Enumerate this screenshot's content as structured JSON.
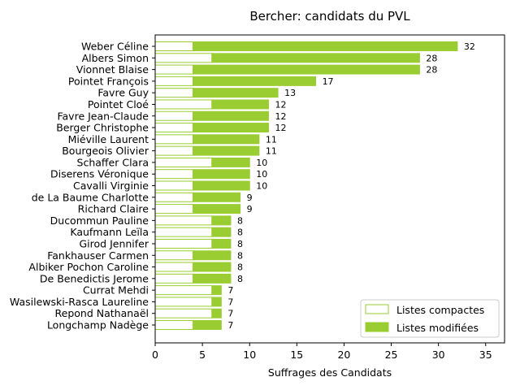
{
  "chart_data": {
    "type": "bar",
    "orientation": "horizontal",
    "stacked": true,
    "title": "Bercher: candidats du PVL",
    "xlabel": "Suffrages des Candidats",
    "ylabel": "",
    "xlim": [
      0,
      37
    ],
    "xticks": [
      0,
      5,
      10,
      15,
      20,
      25,
      30,
      35
    ],
    "grid": false,
    "legend_position": "lower-right",
    "categories": [
      "Weber Céline",
      "Albers Simon",
      "Vionnet Blaise",
      "Pointet François",
      "Favre Guy",
      "Pointet Cloé",
      "Favre Jean-Claude",
      "Berger Christophe",
      "Miéville Laurent",
      "Bourgeois Olivier",
      "Schaffer Clara",
      "Diserens Véronique",
      "Cavalli Virginie",
      "de La Baume Charlotte",
      "Richard Claire",
      "Ducommun Pauline",
      "Kaufmann Leïla",
      "Girod Jennifer",
      "Fankhauser Carmen",
      "Albiker Pochon Caroline",
      "De Benedictis Jerome",
      "Currat Mehdi",
      "Wasilewski-Rasca Laureline",
      "Repond Nathanaël",
      "Longchamp Nadège"
    ],
    "series": [
      {
        "name": "Listes compactes",
        "color": "#ffffff",
        "edgecolor": "#9acd32",
        "values": [
          4,
          6,
          4,
          4,
          4,
          6,
          4,
          4,
          4,
          4,
          6,
          4,
          4,
          4,
          4,
          6,
          6,
          6,
          4,
          4,
          4,
          6,
          6,
          6,
          4
        ]
      },
      {
        "name": "Listes modifiées",
        "color": "#9acd32",
        "edgecolor": "#9acd32",
        "values": [
          28,
          22,
          24,
          13,
          9,
          6,
          8,
          8,
          7,
          7,
          4,
          6,
          6,
          5,
          5,
          2,
          2,
          2,
          4,
          4,
          4,
          1,
          1,
          1,
          3
        ]
      }
    ],
    "totals": [
      32,
      28,
      28,
      17,
      13,
      12,
      12,
      12,
      11,
      11,
      10,
      10,
      10,
      9,
      9,
      8,
      8,
      8,
      8,
      8,
      8,
      7,
      7,
      7,
      7
    ]
  }
}
